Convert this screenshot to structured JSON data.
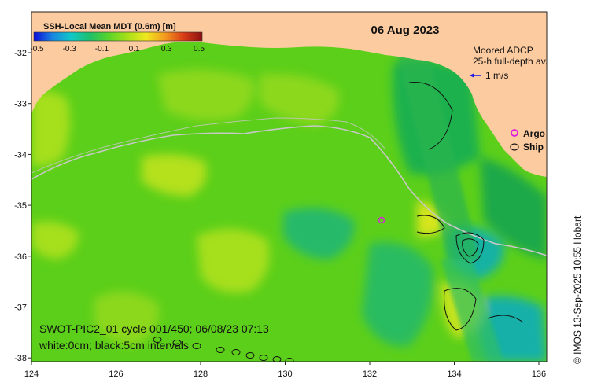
{
  "map": {
    "date": "06 Aug 2023",
    "colorbar": {
      "title": "SSH-Local Mean MDT (0.6m) [m]",
      "ticks": [
        "-0.5",
        "-0.3",
        "-0.1",
        "0.1",
        "0.3",
        "0.5"
      ],
      "colors": [
        "#0b0bd8",
        "#1a86e0",
        "#10c8c8",
        "#1fbf6a",
        "#59d42a",
        "#a8e019",
        "#f0e81e",
        "#f39b1f",
        "#d93c17",
        "#8b1010"
      ]
    },
    "x_ticks": [
      "124",
      "126",
      "128",
      "130",
      "132",
      "134",
      "136"
    ],
    "y_ticks": [
      "-32",
      "-33",
      "-34",
      "-35",
      "-36",
      "-37",
      "-38"
    ],
    "legend": {
      "adcp_title": "Moored ADCP",
      "adcp_subtitle": "25-h full-depth av.",
      "arrow_label": "1 m/s",
      "argo_label": "Argo",
      "ship_label": "Ship"
    },
    "annotation_line1": "SWOT-PIC2_01 cycle 001/450; 06/08/23 07:13",
    "annotation_line2": "white:0cm; black:5cm intervals",
    "credit": "© IMOS 13-Sep-2025 10:55 Hobart",
    "colors": {
      "land": "#fdcba0",
      "ocean_base": "#5ccf1a",
      "argo": "#e01ee0",
      "arrow": "#1a1ae6"
    }
  }
}
